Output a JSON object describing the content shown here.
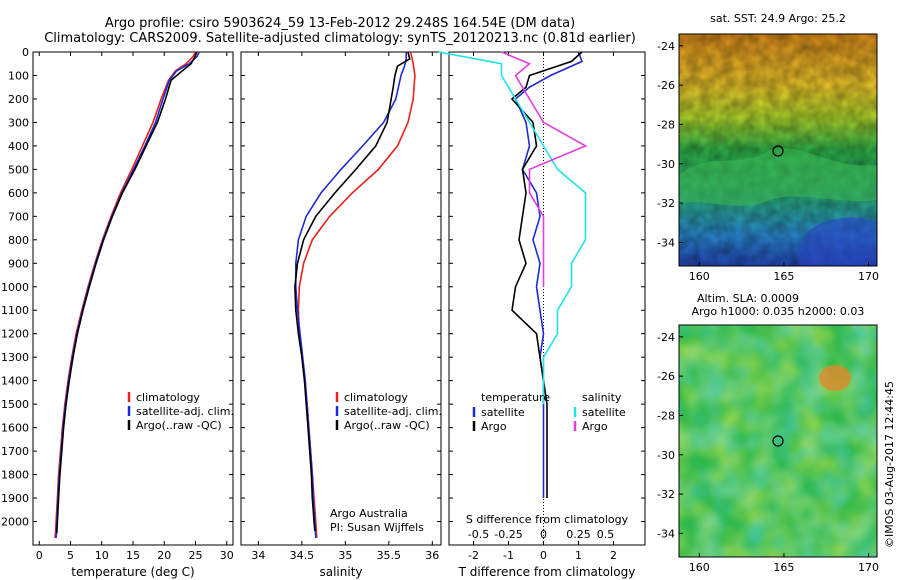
{
  "header": {
    "line1": "Argo profile: csiro 5903624_59 13-Feb-2012 29.248S 164.54E (DM data)",
    "line2": "Climatology: CARS2009. Satellite-adjusted climatology: synTS_20120213.nc (0.81d earlier)"
  },
  "footer": {
    "credit": "Argo Australia",
    "pi": "PI: Susan Wijffels",
    "stamp": "©IMOS 03-Aug-2017 12:44:45"
  },
  "colors": {
    "climatology": "#e8221a",
    "satellite": "#1f2ad6",
    "argo": "#000000",
    "sal_satellite": "#1fe3e8",
    "sal_argo": "#e23ee0"
  },
  "chart_data": [
    {
      "type": "line",
      "id": "temperature",
      "xlabel": "temperature (deg C)",
      "ylabel": "",
      "xlim": [
        -1,
        31
      ],
      "ylim": [
        2100,
        0
      ],
      "xticks": [
        0,
        5,
        10,
        15,
        20,
        25,
        30
      ],
      "yticks": [
        0,
        100,
        200,
        300,
        400,
        500,
        600,
        700,
        800,
        900,
        1000,
        1100,
        1200,
        1300,
        1400,
        1500,
        1600,
        1700,
        1800,
        1900,
        2000
      ],
      "legend": [
        "climatology",
        "satellite-adj. clim.",
        "Argo(..raw -QC)"
      ],
      "legend_position": "lower-right",
      "series": [
        {
          "name": "climatology",
          "color": "#e8221a",
          "x": [
            25.0,
            24.6,
            23.5,
            21.8,
            20.7,
            19.5,
            18.2,
            16.5,
            14.8,
            13.0,
            11.5,
            10.1,
            8.9,
            7.8,
            6.8,
            5.9,
            5.2,
            4.6,
            4.1,
            3.7,
            3.4,
            3.1,
            2.9,
            2.7,
            2.6,
            2.5
          ],
          "y": [
            0,
            20,
            50,
            80,
            120,
            200,
            300,
            400,
            500,
            600,
            700,
            800,
            900,
            1000,
            1100,
            1200,
            1300,
            1400,
            1500,
            1600,
            1700,
            1800,
            1900,
            2000,
            2050,
            2070
          ]
        },
        {
          "name": "satellite-adj. clim.",
          "color": "#1f2ad6",
          "x": [
            25.6,
            25.2,
            24.0,
            22.0,
            20.8,
            19.8,
            18.6,
            16.9,
            15.1,
            13.2,
            11.6,
            10.2,
            9.0,
            7.9,
            6.9,
            6.0,
            5.3,
            4.7,
            4.2,
            3.8,
            3.5,
            3.2,
            3.0,
            2.8,
            2.7
          ],
          "y": [
            0,
            20,
            50,
            80,
            120,
            200,
            300,
            400,
            500,
            600,
            700,
            800,
            900,
            1000,
            1100,
            1200,
            1300,
            1400,
            1500,
            1600,
            1700,
            1800,
            1900,
            2000,
            2070
          ]
        },
        {
          "name": "Argo(..raw -QC)",
          "color": "#000000",
          "x": [
            25.2,
            24.9,
            24.3,
            22.9,
            21.1,
            20.2,
            18.9,
            17.1,
            15.3,
            13.3,
            11.7,
            10.3,
            9.1,
            8.0,
            7.0,
            6.1,
            5.4,
            4.8,
            4.3,
            3.9,
            3.6,
            3.3,
            3.1,
            2.9,
            2.8
          ],
          "y": [
            0,
            20,
            50,
            80,
            120,
            200,
            300,
            400,
            500,
            600,
            700,
            800,
            900,
            1000,
            1100,
            1200,
            1300,
            1400,
            1500,
            1600,
            1700,
            1800,
            1900,
            2000,
            2050
          ]
        }
      ]
    },
    {
      "type": "line",
      "id": "salinity",
      "xlabel": "salinity",
      "xlim": [
        33.8,
        36.1
      ],
      "ylim": [
        2100,
        0
      ],
      "xticks": [
        34,
        34.5,
        35,
        35.5,
        36
      ],
      "legend": [
        "climatology",
        "satellite-adj. clim.",
        "Argo(..raw -QC)"
      ],
      "legend_position": "lower-right",
      "series": [
        {
          "name": "climatology",
          "color": "#e8221a",
          "x": [
            35.75,
            35.78,
            35.8,
            35.78,
            35.72,
            35.6,
            35.38,
            35.08,
            34.82,
            34.62,
            34.52,
            34.47,
            34.46,
            34.47,
            34.5,
            34.53,
            34.56,
            34.58,
            34.6,
            34.62,
            34.63,
            34.64,
            34.65,
            34.66,
            34.67
          ],
          "y": [
            0,
            50,
            100,
            200,
            300,
            400,
            500,
            600,
            700,
            800,
            900,
            1000,
            1100,
            1200,
            1300,
            1400,
            1500,
            1600,
            1700,
            1800,
            1850,
            1900,
            1950,
            2000,
            2070
          ]
        },
        {
          "name": "satellite-adj. clim.",
          "color": "#1f2ad6",
          "x": [
            35.7,
            35.7,
            35.68,
            35.64,
            35.58,
            35.44,
            35.2,
            34.95,
            34.72,
            34.55,
            34.46,
            34.43,
            34.43,
            34.45,
            34.48,
            34.51,
            34.54,
            34.56,
            34.58,
            34.6,
            34.62,
            34.63,
            34.64,
            34.65,
            34.66
          ],
          "y": [
            0,
            30,
            60,
            100,
            200,
            300,
            400,
            500,
            600,
            700,
            800,
            900,
            1000,
            1100,
            1200,
            1300,
            1400,
            1500,
            1600,
            1700,
            1800,
            1900,
            1950,
            2000,
            2070
          ]
        },
        {
          "name": "Argo(..raw -QC)",
          "color": "#000000",
          "x": [
            35.72,
            35.74,
            35.6,
            35.57,
            35.55,
            35.48,
            35.35,
            35.12,
            34.88,
            34.66,
            34.52,
            34.45,
            34.42,
            34.43,
            34.46,
            34.5,
            34.53,
            34.55,
            34.57,
            34.59,
            34.61,
            34.62,
            34.63,
            34.64,
            34.65
          ],
          "y": [
            0,
            30,
            60,
            100,
            150,
            300,
            400,
            500,
            600,
            700,
            800,
            900,
            1000,
            1100,
            1200,
            1300,
            1400,
            1500,
            1600,
            1700,
            1800,
            1900,
            1950,
            2000,
            2040
          ]
        }
      ]
    },
    {
      "type": "line",
      "id": "differences",
      "xlabel": "T difference from climatology",
      "xlabel_top": "S difference from climatology",
      "xlim": [
        -2.7,
        2.9
      ],
      "ylim": [
        2100,
        0
      ],
      "xticks": [
        -2,
        -1,
        0,
        1,
        2
      ],
      "xticks_S": [
        -0.5,
        -0.25,
        0,
        0.25,
        0.5
      ],
      "xticklabels_S": [
        "-0.5",
        "-0.25",
        "0",
        "0.25",
        "0.5"
      ],
      "legend": {
        "temperature_header": "temperature",
        "salinity_header": "salinity",
        "items": [
          "satellite",
          "Argo",
          "satellite",
          "Argo"
        ]
      },
      "legend_position": "lower-center",
      "series": [
        {
          "name": "temperature satellite",
          "color": "#1f2ad6",
          "x": [
            1.0,
            1.1,
            0.2,
            -0.4,
            -0.8,
            -0.5,
            -0.4,
            -0.6,
            -0.2,
            -0.1,
            -0.3,
            -0.1,
            -0.2,
            -0.1,
            0.0,
            -0.1,
            0.0,
            0.0,
            0.0,
            0.0,
            0.0,
            0.0
          ],
          "y": [
            0,
            40,
            100,
            150,
            200,
            300,
            400,
            500,
            600,
            700,
            800,
            900,
            1000,
            1100,
            1200,
            1300,
            1400,
            1500,
            1600,
            1700,
            1800,
            1900
          ]
        },
        {
          "name": "temperature Argo",
          "color": "#000000",
          "x": [
            1.1,
            0.8,
            -0.4,
            -0.5,
            -0.9,
            -0.3,
            -0.2,
            -0.6,
            -0.5,
            -0.6,
            -0.7,
            -0.5,
            -0.8,
            -0.9,
            -0.2,
            -0.1,
            0.0,
            0.1,
            0.1,
            0.1,
            0.1,
            0.1
          ],
          "y": [
            0,
            40,
            100,
            150,
            200,
            300,
            400,
            500,
            600,
            700,
            800,
            900,
            1000,
            1100,
            1200,
            1300,
            1400,
            1500,
            1600,
            1700,
            1800,
            1900
          ]
        },
        {
          "name": "salinity satellite",
          "color": "#1fe3e8",
          "x": [
            -0.75,
            -0.3,
            -0.3,
            -0.2,
            -0.1,
            0.0,
            0.1,
            0.3,
            0.3,
            0.3,
            0.2,
            0.2,
            0.1,
            0.1,
            0.0,
            0.0,
            0.0
          ],
          "y": [
            0,
            50,
            100,
            200,
            300,
            400,
            500,
            600,
            700,
            800,
            900,
            1000,
            1100,
            1200,
            1300,
            1400,
            1500
          ]
        },
        {
          "name": "salinity Argo",
          "color": "#e23ee0",
          "x": [
            -0.3,
            -0.1,
            -0.2,
            -0.1,
            0.0,
            0.3,
            -0.1,
            -0.1,
            0.0,
            0.0,
            0.0,
            0.0
          ],
          "y": [
            0,
            50,
            100,
            200,
            300,
            400,
            500,
            600,
            700,
            800,
            900,
            1000
          ]
        }
      ]
    },
    {
      "type": "heatmap",
      "id": "sst_map",
      "title": "sat. SST: 24.9 Argo: 25.2",
      "xlim": [
        158.8,
        170.5
      ],
      "ylim": [
        -35.2,
        -23.4
      ],
      "xticks": [
        160,
        165,
        170
      ],
      "yticks": [
        -24,
        -26,
        -28,
        -30,
        -32,
        -34
      ],
      "marker": {
        "lon": 164.54,
        "lat": -29.248
      }
    },
    {
      "type": "heatmap",
      "id": "sla_map",
      "title_line1": "Altim. SLA: 0.0009",
      "title_line2": "Argo h1000: 0.035 h2000: 0.03",
      "xlim": [
        158.8,
        170.5
      ],
      "ylim": [
        -35.2,
        -23.4
      ],
      "xticks": [
        160,
        165,
        170
      ],
      "yticks": [
        -24,
        -26,
        -28,
        -30,
        -32,
        -34
      ],
      "marker": {
        "lon": 164.54,
        "lat": -29.248
      }
    }
  ]
}
